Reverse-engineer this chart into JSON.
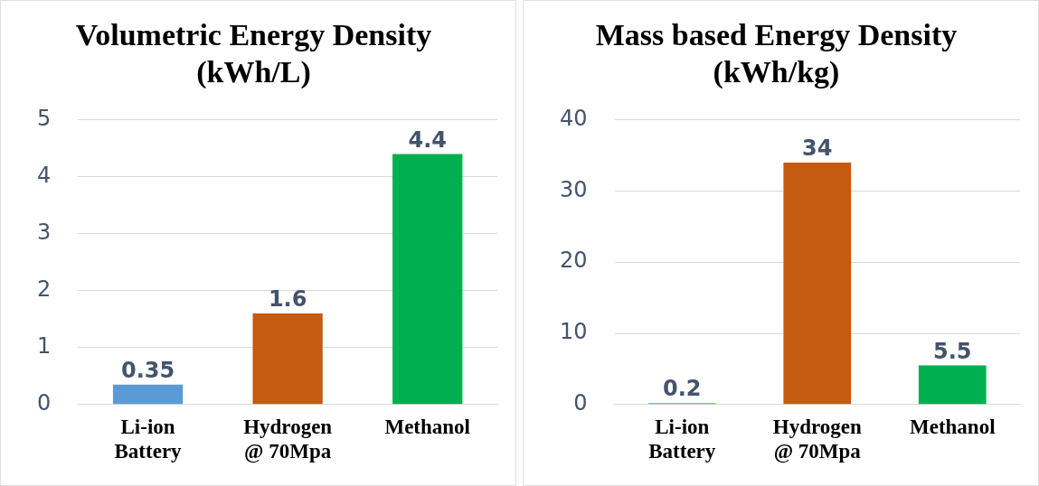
{
  "chart_data": [
    {
      "type": "bar",
      "title": "Volumetric Energy Density (kWh/L)",
      "categories": [
        "Li-ion Battery",
        "Hydrogen @ 70Mpa",
        "Methanol"
      ],
      "values": [
        0.35,
        1.6,
        4.4
      ],
      "colors": [
        "#5b9bd5",
        "#c55a11",
        "#00b050"
      ],
      "ylim": [
        0,
        5
      ],
      "yticks": [
        0,
        1,
        2,
        3,
        4,
        5
      ],
      "grid": "y",
      "legend": false,
      "data_labels": true
    },
    {
      "type": "bar",
      "title": "Mass based Energy Density (kWh/kg)",
      "categories": [
        "Li-ion Battery",
        "Hydrogen @ 70Mpa",
        "Methanol"
      ],
      "values": [
        0.2,
        34,
        5.5
      ],
      "colors": [
        "#5b9bd5",
        "#c55a11",
        "#00b050"
      ],
      "ylim": [
        0,
        40
      ],
      "yticks": [
        0,
        10,
        20,
        30,
        40
      ],
      "grid": "y",
      "legend": false,
      "data_labels": true
    }
  ]
}
